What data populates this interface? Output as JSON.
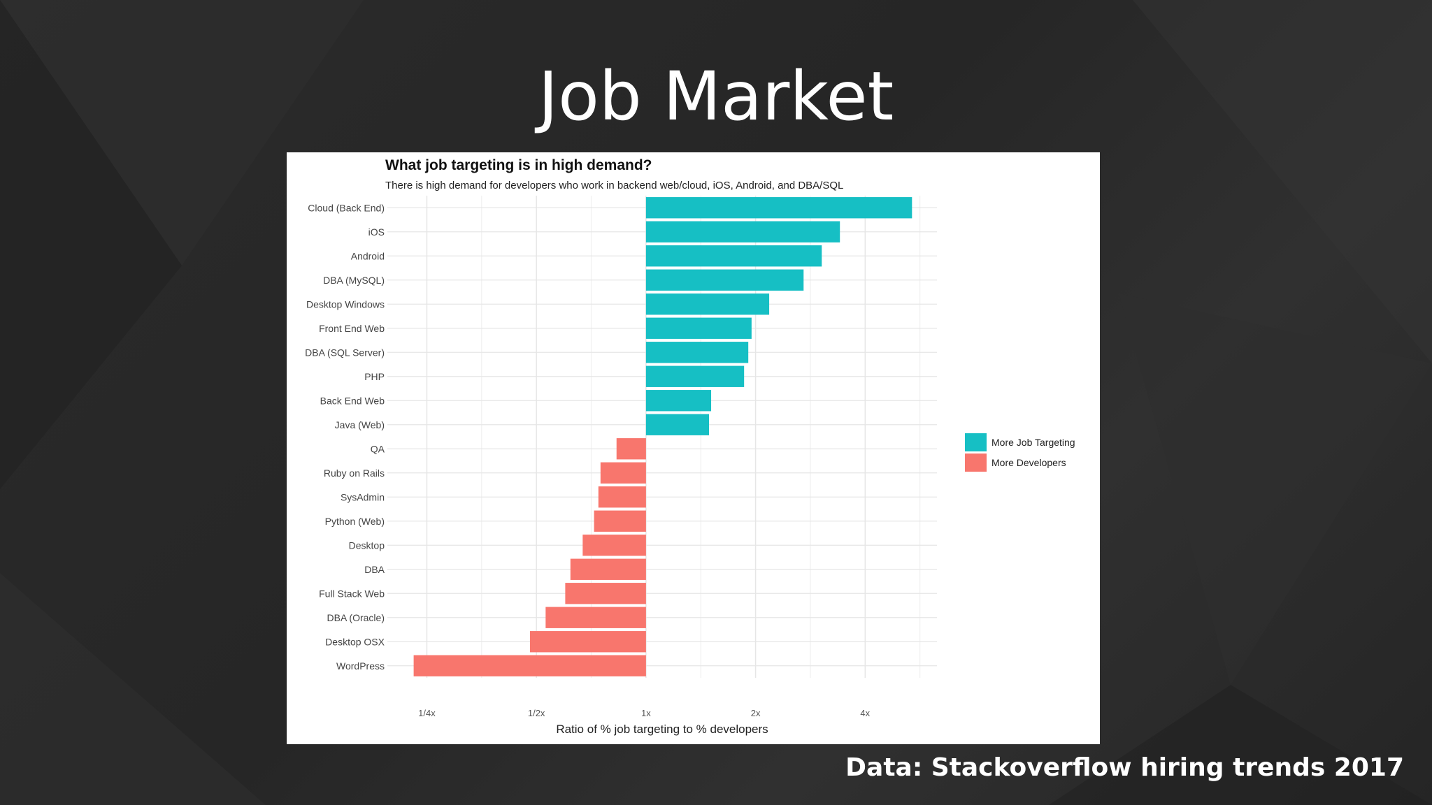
{
  "slide": {
    "title": "Job Market",
    "footer": "Data: Stackoverflow  hiring trends 2017"
  },
  "colors": {
    "background": "#2a2a2a",
    "more_jobs": "#16BFC4",
    "more_devs": "#F8766D",
    "grid": "#e6e6e6"
  },
  "chart_data": {
    "type": "bar",
    "orientation": "horizontal",
    "title": "What job targeting is in high demand?",
    "subtitle": "There is high demand for developers who work in backend web/cloud, iOS, Android, and DBA/SQL",
    "xlabel": "Ratio of % job targeting to % developers",
    "ylabel": "",
    "x_scale": "log2",
    "xlim": [
      0.2,
      6.3
    ],
    "x_ticks": [
      0.25,
      0.5,
      1,
      2,
      4
    ],
    "x_tick_labels": [
      "1/4x",
      "1/2x",
      "1x",
      "2x",
      "4x"
    ],
    "baseline": 1,
    "grid": true,
    "legend_position": "right",
    "legend": [
      {
        "label": "More Job Targeting",
        "color": "#16BFC4"
      },
      {
        "label": "More Developers",
        "color": "#F8766D"
      }
    ],
    "categories": [
      "Cloud (Back End)",
      "iOS",
      "Android",
      "DBA (MySQL)",
      "Desktop Windows",
      "Front End Web",
      "DBA (SQL Server)",
      "PHP",
      "Back End Web",
      "Java (Web)",
      "QA",
      "Ruby on Rails",
      "SysAdmin",
      "Python (Web)",
      "Desktop",
      "DBA",
      "Full Stack Web",
      "DBA (Oracle)",
      "Desktop OSX",
      "WordPress"
    ],
    "values": [
      5.38,
      3.41,
      3.04,
      2.71,
      2.18,
      1.95,
      1.91,
      1.86,
      1.51,
      1.49,
      0.83,
      0.75,
      0.74,
      0.72,
      0.67,
      0.62,
      0.6,
      0.53,
      0.48,
      0.23
    ],
    "groups": [
      "More Job Targeting",
      "More Job Targeting",
      "More Job Targeting",
      "More Job Targeting",
      "More Job Targeting",
      "More Job Targeting",
      "More Job Targeting",
      "More Job Targeting",
      "More Job Targeting",
      "More Job Targeting",
      "More Developers",
      "More Developers",
      "More Developers",
      "More Developers",
      "More Developers",
      "More Developers",
      "More Developers",
      "More Developers",
      "More Developers",
      "More Developers"
    ]
  }
}
